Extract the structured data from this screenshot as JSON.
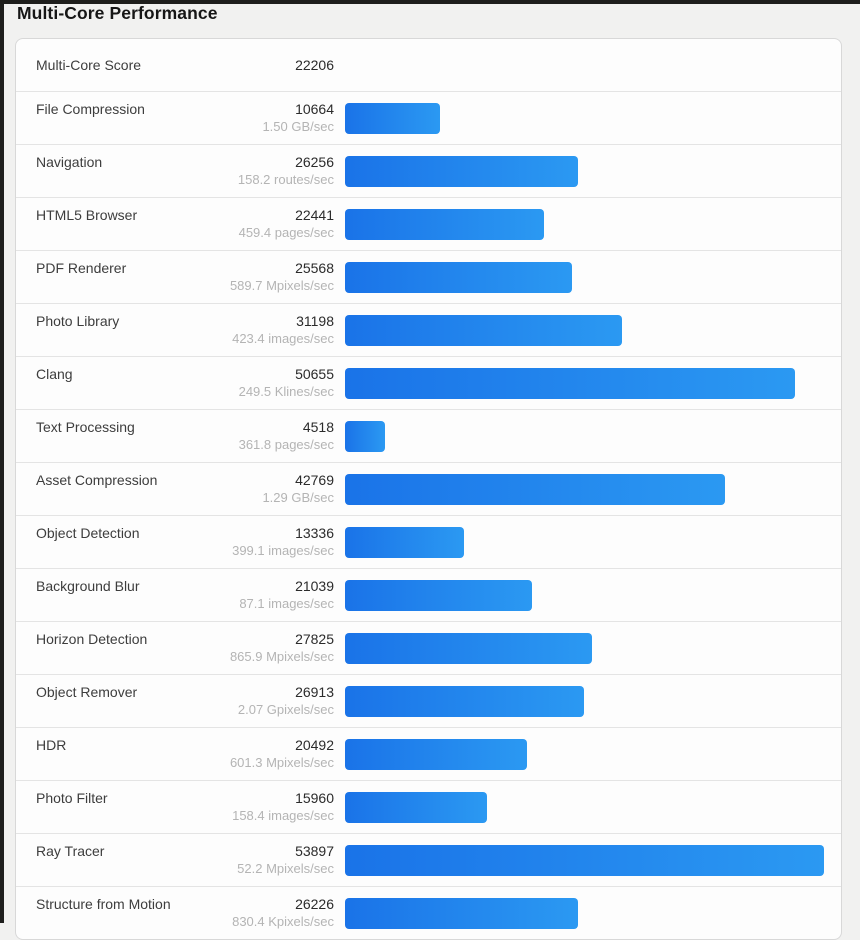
{
  "page": {
    "title": "Multi-Core Performance"
  },
  "colors": {
    "bar_gradient_start": "#1a73e8",
    "bar_gradient_end": "#2b99f2",
    "page_background": "#f1f1f0",
    "card_background": "#fdfdfd",
    "window_edge": "#1e1e1c",
    "rate_text": "#b4b4b4"
  },
  "chart_data": {
    "type": "bar",
    "orientation": "horizontal",
    "title": "Multi-Core Performance",
    "summary_label": "Multi-Core Score",
    "summary_value": 22206,
    "xlim": [
      0,
      53897
    ],
    "grid": false,
    "legend": false,
    "bar_gradient": [
      "#1a73e8",
      "#2b99f2"
    ],
    "categories": [
      "File Compression",
      "Navigation",
      "HTML5 Browser",
      "PDF Renderer",
      "Photo Library",
      "Clang",
      "Text Processing",
      "Asset Compression",
      "Object Detection",
      "Background Blur",
      "Horizon Detection",
      "Object Remover",
      "HDR",
      "Photo Filter",
      "Ray Tracer",
      "Structure from Motion"
    ],
    "values": [
      10664,
      26256,
      22441,
      25568,
      31198,
      50655,
      4518,
      42769,
      13336,
      21039,
      27825,
      26913,
      20492,
      15960,
      53897,
      26226
    ],
    "rates": [
      "1.50 GB/sec",
      "158.2 routes/sec",
      "459.4 pages/sec",
      "589.7 Mpixels/sec",
      "423.4 images/sec",
      "249.5 Klines/sec",
      "361.8 pages/sec",
      "1.29 GB/sec",
      "399.1 images/sec",
      "87.1 images/sec",
      "865.9 Mpixels/sec",
      "2.07 Gpixels/sec",
      "601.3 Mpixels/sec",
      "158.4 images/sec",
      "52.2 Mpixels/sec",
      "830.4 Kpixels/sec"
    ]
  }
}
